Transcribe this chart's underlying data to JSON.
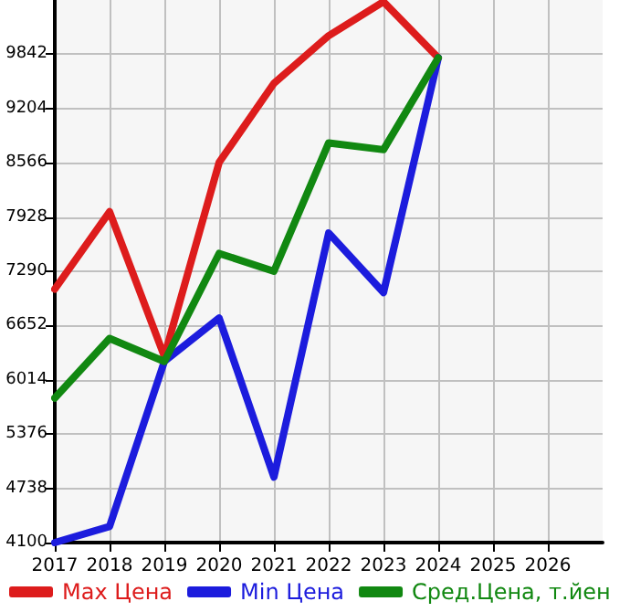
{
  "chart_data": {
    "type": "line",
    "x": [
      2017,
      2018,
      2019,
      2020,
      2021,
      2022,
      2023,
      2024
    ],
    "series": [
      {
        "name": "Max Цена",
        "color": "#dd1c1c",
        "values": [
          7080,
          7990,
          6290,
          8570,
          9500,
          10060,
          10460,
          9800
        ]
      },
      {
        "name": "Min Цена",
        "color": "#1c1cdd",
        "values": [
          4100,
          4290,
          6230,
          6740,
          4870,
          7740,
          7040,
          9800
        ]
      },
      {
        "name": "Сред.Цена, т.йен",
        "color": "#118811",
        "values": [
          5800,
          6500,
          6230,
          7500,
          7290,
          8800,
          8720,
          9800
        ]
      }
    ],
    "xlim": [
      2017,
      2027
    ],
    "xticks": [
      2017,
      2018,
      2019,
      2020,
      2021,
      2022,
      2023,
      2024,
      2025,
      2026
    ],
    "ylim": [
      4100,
      10480
    ],
    "yticks": [
      4100,
      4738,
      5376,
      6014,
      6652,
      7290,
      7928,
      8566,
      9204,
      9842
    ],
    "grid": true,
    "legend": "bottom",
    "marker": "none",
    "line_style": "solid"
  }
}
